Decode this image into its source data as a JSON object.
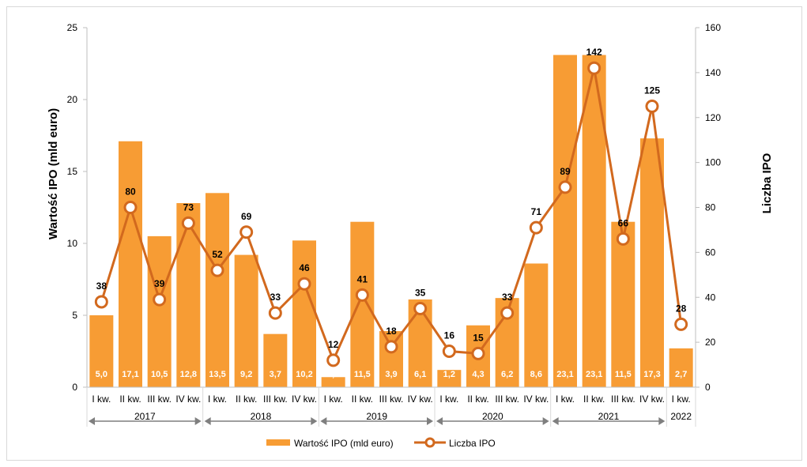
{
  "chart_data": {
    "type": "bar+line",
    "categories": [
      "I kw.",
      "II kw.",
      "III kw.",
      "IV kw.",
      "I kw.",
      "II kw.",
      "III kw.",
      "IV kw.",
      "I kw.",
      "II kw.",
      "III kw.",
      "IV kw.",
      "I kw.",
      "II kw.",
      "III kw.",
      "IV kw.",
      "I kw.",
      "II kw.",
      "III kw.",
      "IV kw.",
      "I kw."
    ],
    "groups": [
      {
        "label": "2017",
        "count": 4
      },
      {
        "label": "2018",
        "count": 4
      },
      {
        "label": "2019",
        "count": 4
      },
      {
        "label": "2020",
        "count": 4
      },
      {
        "label": "2021",
        "count": 4
      },
      {
        "label": "2022",
        "count": 1
      }
    ],
    "series": [
      {
        "name": "Wartość IPO (mld euro)",
        "type": "bar",
        "axis": "left",
        "color": "#F79C34",
        "values": [
          5.0,
          17.1,
          10.5,
          12.8,
          13.5,
          9.2,
          3.7,
          10.2,
          0.7,
          11.5,
          3.9,
          6.1,
          1.2,
          4.3,
          6.2,
          8.6,
          23.1,
          23.1,
          11.5,
          17.3,
          2.7
        ],
        "labels": [
          "5,0",
          "17,1",
          "10,5",
          "12,8",
          "13,5",
          "9,2",
          "3,7",
          "10,2",
          "0,7",
          "11,5",
          "3,9",
          "6,1",
          "1,2",
          "4,3",
          "6,2",
          "8,6",
          "23,1",
          "23,1",
          "11,5",
          "17,3",
          "2,7"
        ]
      },
      {
        "name": "Liczba IPO",
        "type": "line",
        "axis": "right",
        "color": "#D2691E",
        "values": [
          38,
          80,
          39,
          73,
          52,
          69,
          33,
          46,
          12,
          41,
          18,
          35,
          16,
          15,
          33,
          71,
          89,
          142,
          66,
          125,
          28
        ]
      }
    ],
    "ylabel": "Wartość IPO (mld euro)",
    "y2label": "Liczba IPO",
    "ylim": [
      0,
      25
    ],
    "y2lim": [
      0,
      160
    ],
    "yticks": [
      0,
      5,
      10,
      15,
      20,
      25
    ],
    "y2ticks": [
      0,
      20,
      40,
      60,
      80,
      100,
      120,
      140,
      160
    ],
    "grid": false,
    "legend": "bottom"
  }
}
